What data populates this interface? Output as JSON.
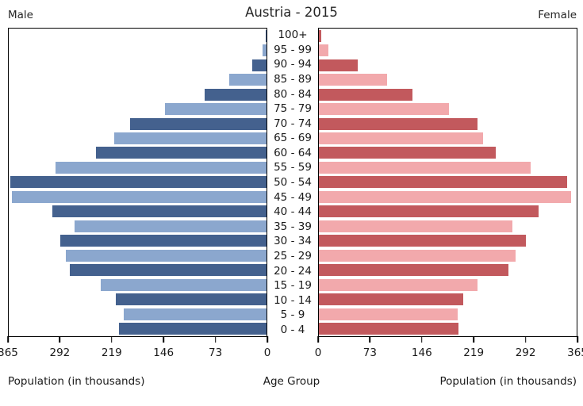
{
  "header": {
    "title": "Austria - 2015",
    "male_label": "Male",
    "female_label": "Female"
  },
  "axes": {
    "left_caption": "Population (in thousands)",
    "center_caption": "Age Group",
    "right_caption": "Population (in thousands)",
    "left_ticks": [
      "365",
      "292",
      "219",
      "146",
      "73",
      "0"
    ],
    "right_ticks": [
      "0",
      "73",
      "146",
      "219",
      "292",
      "365"
    ]
  },
  "colors": {
    "male_dark": "#44618E",
    "male_light": "#8BA7CE",
    "female_dark": "#C2595D",
    "female_light": "#F2A9AC",
    "panel_border": "#000000",
    "text": "#262626"
  },
  "chart_data": {
    "type": "bar",
    "subtype": "population-pyramid",
    "orientation": "horizontal",
    "title": "Austria - 2015",
    "unit": "thousands",
    "xlim": [
      0,
      365
    ],
    "x_tick_values": [
      0,
      73,
      146,
      219,
      292,
      365
    ],
    "grid": false,
    "legend_position": "none",
    "bar_color_pattern": "alternating dark/light per age row, dark on even rows from top",
    "categories": [
      "100+",
      "95 - 99",
      "90 - 94",
      "85 - 89",
      "80 - 84",
      "75 - 79",
      "70 - 74",
      "65 - 69",
      "60 - 64",
      "55 - 59",
      "50 - 54",
      "45 - 49",
      "40 - 44",
      "35 - 39",
      "30 - 34",
      "25 - 29",
      "20 - 24",
      "15 - 19",
      "10 - 14",
      "5 - 9",
      "0 - 4"
    ],
    "series": [
      {
        "name": "Male",
        "side": "left",
        "values": [
          1,
          6,
          20,
          53,
          88,
          144,
          193,
          216,
          241,
          299,
          363,
          361,
          303,
          272,
          292,
          284,
          278,
          235,
          213,
          202,
          209
        ]
      },
      {
        "name": "Female",
        "side": "right",
        "values": [
          3,
          14,
          55,
          97,
          133,
          184,
          225,
          232,
          251,
          300,
          351,
          357,
          311,
          274,
          293,
          279,
          268,
          225,
          204,
          196,
          198
        ]
      }
    ]
  }
}
